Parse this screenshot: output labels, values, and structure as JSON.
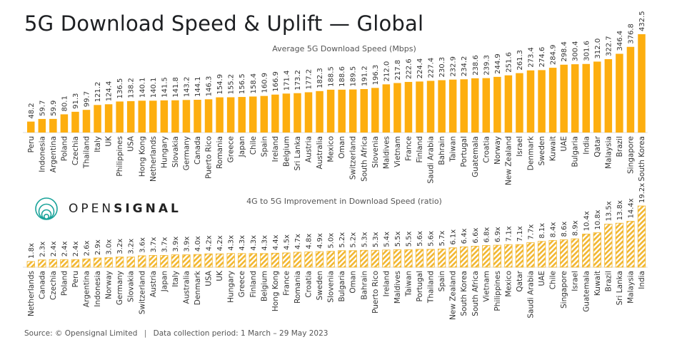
{
  "title": "5G Download Speed & Uplift — Global",
  "brand": {
    "light": "OPEN",
    "bold": "SIGNAL",
    "color": "#1aa39a"
  },
  "footer": {
    "source": "Source:  © Opensignal Limited",
    "period": "Data collection period: 1 March – 29 May 2023"
  },
  "colors": {
    "bar": "#FDAE0F",
    "hatch": "#F2B731",
    "baseline": "#dddddd"
  },
  "chart_data": [
    {
      "type": "bar",
      "title": "Average 5G Download Speed (Mbps)",
      "xlabel": "",
      "ylabel": "",
      "ylim": [
        0,
        450
      ],
      "value_suffix": "",
      "categories": [
        "Peru",
        "Indonesia",
        "Argentina",
        "Poland",
        "Czechia",
        "Thailand",
        "Italy",
        "UK",
        "Philippines",
        "USA",
        "Hong Kong",
        "Netherlands",
        "Hungary",
        "Slovakia",
        "Germany",
        "Canada",
        "Puerto Rico",
        "Romania",
        "Greece",
        "Japan",
        "Chile",
        "Spain",
        "Ireland",
        "Belgium",
        "Sri Lanka",
        "Austria",
        "Australia",
        "Mexico",
        "Oman",
        "Switzerland",
        "South Africa",
        "Slovenia",
        "Maldives",
        "Vietnam",
        "France",
        "Finland",
        "Saudi Arabia",
        "Bahrain",
        "Taiwan",
        "Portugal",
        "Guatemala",
        "Croatia",
        "Norway",
        "New Zealand",
        "Israel",
        "Denmark",
        "Sweden",
        "Kuwait",
        "UAE",
        "Bulgaria",
        "India",
        "Qatar",
        "Malaysia",
        "Brazil",
        "Singapore",
        "South Korea"
      ],
      "values": [
        48.2,
        59.7,
        59.9,
        80.1,
        91.3,
        99.7,
        121.2,
        124.4,
        136.5,
        138.2,
        140.1,
        140.1,
        141.5,
        141.8,
        143.2,
        144.1,
        146.3,
        154.9,
        155.2,
        156.5,
        158.4,
        160.9,
        166.9,
        171.4,
        173.2,
        177.2,
        182.3,
        188.5,
        188.6,
        189.5,
        191.2,
        196.3,
        212.0,
        217.8,
        222.6,
        224.4,
        227.4,
        230.3,
        232.9,
        234.2,
        238.6,
        239.3,
        244.9,
        251.6,
        261.3,
        273.4,
        274.6,
        284.9,
        298.4,
        300.4,
        301.6,
        312.0,
        322.7,
        346.4,
        376.8,
        432.5
      ],
      "labels": [
        "48.2",
        "59.7",
        "59.9",
        "80.1",
        "91.3",
        "99.7",
        "121.2",
        "124.4",
        "136.5",
        "138.2",
        "140.1",
        "140.1",
        "141.5",
        "141.8",
        "143.2",
        "144.1",
        "146.3",
        "154.9",
        "155.2",
        "156.5",
        "158.4",
        "160.9",
        "166.9",
        "171.4",
        "173.2",
        "177.2",
        "182.3",
        "188.5",
        "188.6",
        "189.5",
        "191.2",
        "196.3",
        "212.0",
        "217.8",
        "222.6",
        "224.4",
        "227.4",
        "230.3",
        "232.9",
        "234.2",
        "238.6",
        "239.3",
        "244.9",
        "251.6",
        "261.3",
        "273.4",
        "274.6",
        "284.9",
        "298.4",
        "300.4",
        "301.6",
        "312.0",
        "322.7",
        "346.4",
        "376.8",
        "432.5"
      ],
      "grid": false,
      "legend": "none"
    },
    {
      "type": "bar",
      "title": "4G to 5G  Improvement in Download Speed (ratio)",
      "xlabel": "",
      "ylabel": "",
      "ylim": [
        0,
        20
      ],
      "value_suffix": "x",
      "categories": [
        "Netherlands",
        "Canada",
        "Czechia",
        "Poland",
        "Peru",
        "Argentina",
        "Indonesia",
        "Norway",
        "Germany",
        "Slovakia",
        "Switzerland",
        "Austria",
        "Japan",
        "Italy",
        "Australia",
        "Denmark",
        "USA",
        "UK",
        "Hungary",
        "Greece",
        "Finland",
        "Belgium",
        "Hong Kong",
        "France",
        "Romania",
        "Croatia",
        "Sweden",
        "Slovenia",
        "Bulgaria",
        "Oman",
        "Bahrain",
        "Puerto Rico",
        "Ireland",
        "Maldives",
        "Taiwan",
        "Portugal",
        "Thailand",
        "Spain",
        "New Zealand",
        "South Korea",
        "South Africa",
        "Vietnam",
        "Philippines",
        "Mexico",
        "Qatar",
        "Saudi Arabia",
        "UAE",
        "Chile",
        "Singapore",
        "Israel",
        "Guatemala",
        "Kuwait",
        "Brazil",
        "Sri Lanka",
        "Malaysia",
        "India"
      ],
      "values": [
        1.8,
        2.3,
        2.4,
        2.4,
        2.4,
        2.6,
        2.9,
        3.0,
        3.2,
        3.2,
        3.6,
        3.7,
        3.7,
        3.9,
        3.9,
        4.0,
        4.2,
        4.2,
        4.3,
        4.3,
        4.3,
        4.3,
        4.4,
        4.5,
        4.7,
        4.8,
        4.9,
        5.0,
        5.2,
        5.2,
        5.3,
        5.3,
        5.4,
        5.5,
        5.5,
        5.6,
        5.6,
        5.7,
        6.1,
        6.4,
        6.6,
        6.8,
        6.9,
        7.1,
        7.1,
        7.7,
        8.1,
        8.4,
        8.6,
        8.9,
        10.4,
        10.8,
        13.5,
        13.8,
        14.4,
        19.2
      ],
      "labels": [
        "1.8x",
        "2.3x",
        "2.4x",
        "2.4x",
        "2.4x",
        "2.6x",
        "2.9x",
        "3.0x",
        "3.2x",
        "3.2x",
        "3.6x",
        "3.7x",
        "3.7x",
        "3.9x",
        "3.9x",
        "4.0x",
        "4.2x",
        "4.2x",
        "4.3x",
        "4.3x",
        "4.3x",
        "4.3x",
        "4.4x",
        "4.5x",
        "4.7x",
        "4.8x",
        "4.9x",
        "5.0x",
        "5.2x",
        "5.2x",
        "5.3x",
        "5.3x",
        "5.4x",
        "5.5x",
        "5.5x",
        "5.6x",
        "5.6x",
        "5.7x",
        "6.1x",
        "6.4x",
        "6.6x",
        "6.8x",
        "6.9x",
        "7.1x",
        "7.1x",
        "7.7x",
        "8.1x",
        "8.4x",
        "8.6x",
        "8.9x",
        "10.4x",
        "10.8x",
        "13.5x",
        "13.8x",
        "14.4x",
        "19.2x"
      ],
      "grid": false,
      "legend": "none"
    }
  ]
}
